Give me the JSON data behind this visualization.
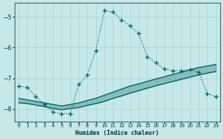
{
  "xlabel": "Humidex (Indice chaleur)",
  "background_color": "#c5e8e8",
  "grid_color": "#b0d8d8",
  "line_color": "#006060",
  "xlim": [
    -0.5,
    23.5
  ],
  "ylim": [
    -8.4,
    -4.55
  ],
  "yticks": [
    -8,
    -7,
    -6,
    -5
  ],
  "xticks": [
    0,
    1,
    2,
    3,
    4,
    5,
    6,
    7,
    8,
    9,
    10,
    11,
    12,
    13,
    14,
    15,
    16,
    17,
    18,
    19,
    20,
    21,
    22,
    23
  ],
  "curve1_x": [
    0,
    1,
    2,
    3,
    4,
    5,
    6,
    7,
    8,
    9,
    10,
    11,
    12,
    13,
    14,
    15,
    16,
    17,
    18,
    19,
    20,
    21,
    22,
    23
  ],
  "curve1_y": [
    -7.25,
    -7.3,
    -7.6,
    -7.85,
    -8.1,
    -8.15,
    -8.15,
    -7.2,
    -6.9,
    -6.1,
    -4.8,
    -4.85,
    -5.1,
    -5.3,
    -5.55,
    -6.3,
    -6.5,
    -6.7,
    -6.75,
    -6.75,
    -6.72,
    -6.8,
    -7.5,
    -7.6
  ],
  "curve2_x": [
    0,
    1,
    2,
    3,
    4,
    5,
    6,
    7,
    8,
    9,
    10,
    11,
    12,
    13,
    14,
    15,
    16,
    17,
    18,
    19,
    20,
    21,
    22,
    23
  ],
  "curve2_y": [
    -7.65,
    -7.7,
    -7.75,
    -7.8,
    -7.85,
    -7.9,
    -7.85,
    -7.8,
    -7.72,
    -7.65,
    -7.55,
    -7.45,
    -7.35,
    -7.25,
    -7.18,
    -7.1,
    -7.02,
    -6.95,
    -6.87,
    -6.8,
    -6.72,
    -6.65,
    -6.6,
    -6.55
  ],
  "curve3_x": [
    0,
    1,
    2,
    3,
    4,
    5,
    6,
    7,
    8,
    9,
    10,
    11,
    12,
    13,
    14,
    15,
    16,
    17,
    18,
    19,
    20,
    21,
    22,
    23
  ],
  "curve3_y": [
    -7.8,
    -7.82,
    -7.87,
    -7.92,
    -7.98,
    -8.02,
    -7.98,
    -7.95,
    -7.88,
    -7.82,
    -7.75,
    -7.65,
    -7.57,
    -7.48,
    -7.4,
    -7.32,
    -7.24,
    -7.17,
    -7.1,
    -7.03,
    -6.96,
    -6.89,
    -6.83,
    -6.78
  ]
}
